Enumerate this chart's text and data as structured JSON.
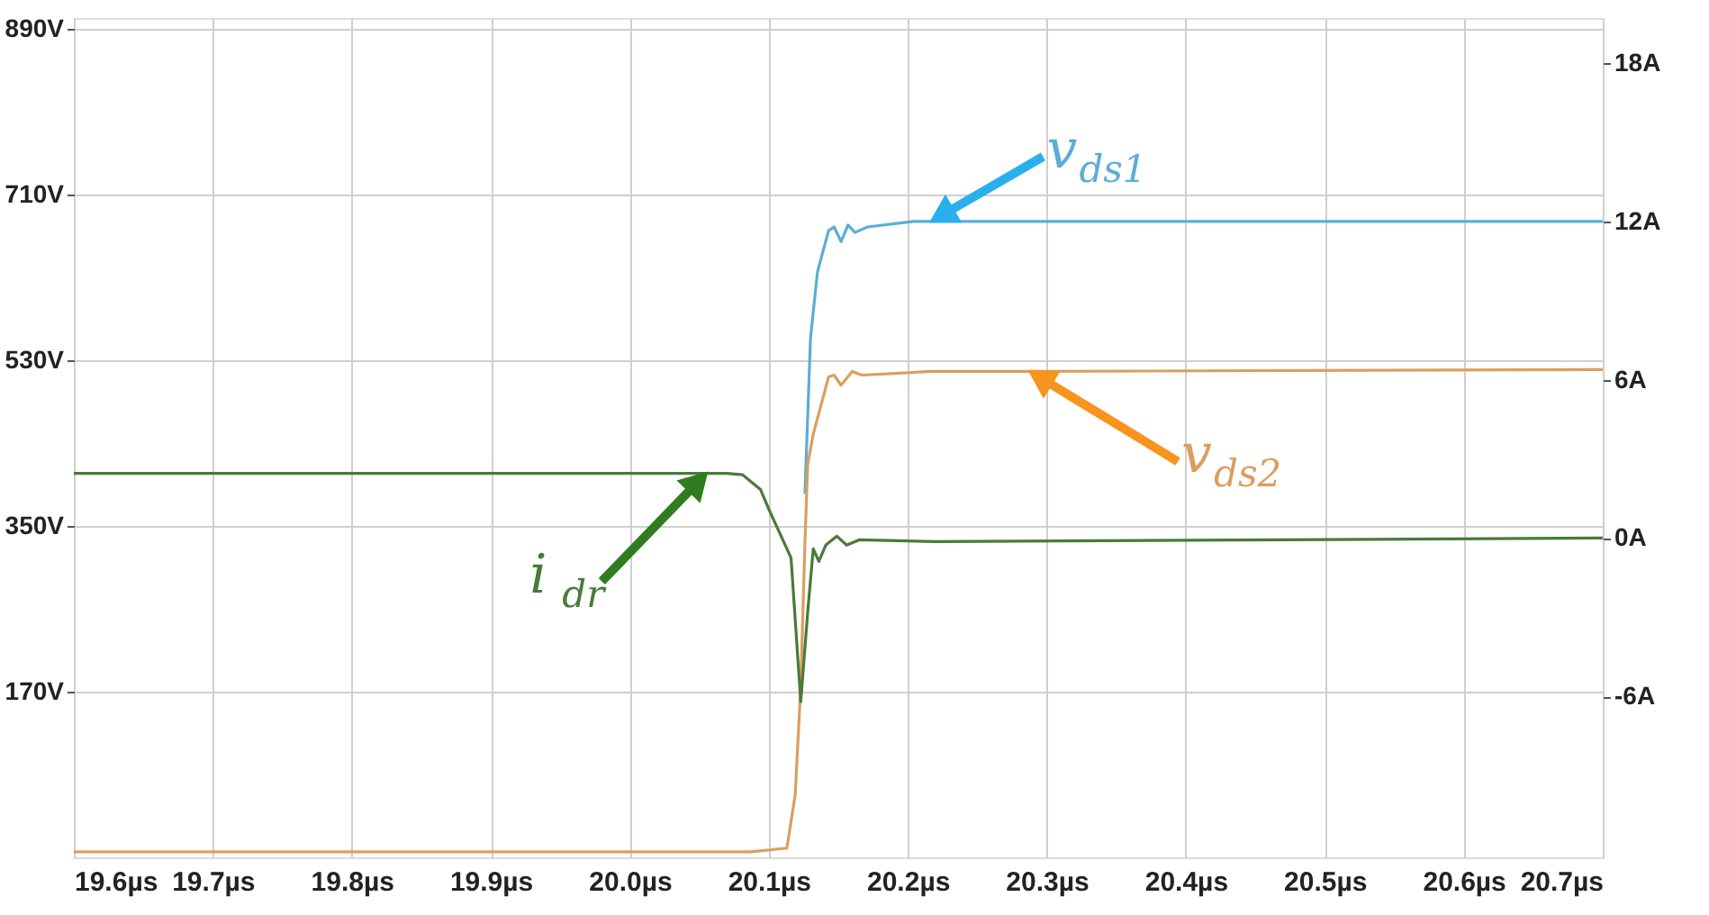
{
  "chart_data": {
    "type": "line",
    "xlim": [
      19.6,
      20.7
    ],
    "xticks": [
      {
        "value": 19.6,
        "label": "19.6µs"
      },
      {
        "value": 19.7,
        "label": "19.7µs"
      },
      {
        "value": 19.8,
        "label": "19.8µs"
      },
      {
        "value": 19.9,
        "label": "19.9µs"
      },
      {
        "value": 20.0,
        "label": "20.0µs"
      },
      {
        "value": 20.1,
        "label": "20.1µs"
      },
      {
        "value": 20.2,
        "label": "20.2µs"
      },
      {
        "value": 20.3,
        "label": "20.3µs"
      },
      {
        "value": 20.4,
        "label": "20.4µs"
      },
      {
        "value": 20.5,
        "label": "20.5µs"
      },
      {
        "value": 20.6,
        "label": "20.6µs"
      },
      {
        "value": 20.7,
        "label": "20.7µs"
      }
    ],
    "ylim": [
      -10,
      902
    ],
    "yticks": [
      {
        "value": 170,
        "label": "170V"
      },
      {
        "value": 350,
        "label": "350V"
      },
      {
        "value": 530,
        "label": "530V"
      },
      {
        "value": 710,
        "label": "710V"
      },
      {
        "value": 890,
        "label": "890V"
      }
    ],
    "y2lim": [
      -12.1,
      19.7
    ],
    "y2ticks": [
      {
        "value": -6,
        "label": "-6A"
      },
      {
        "value": 0,
        "label": "0A"
      },
      {
        "value": 6,
        "label": "6A"
      },
      {
        "value": 12,
        "label": "12A"
      },
      {
        "value": 18,
        "label": "18A"
      }
    ],
    "grid": true,
    "series": [
      {
        "name": "v$_{ds1}$",
        "color": "#5aaed6",
        "x": [
          20.126,
          20.13,
          20.135,
          20.143,
          20.147,
          20.152,
          20.157,
          20.162,
          20.171,
          20.204,
          20.217,
          20.7
        ],
        "values": [
          385,
          554,
          626,
          671,
          675,
          659,
          677,
          669,
          675,
          681,
          681,
          681
        ]
      },
      {
        "name": "v$_{ds2}$",
        "color": "#dc9e5e",
        "x": [
          19.6,
          20.087,
          20.113,
          20.119,
          20.123,
          20.126,
          20.128,
          20.132,
          20.143,
          20.147,
          20.152,
          20.16,
          20.167,
          20.217,
          20.288,
          20.7
        ],
        "values": [
          -4,
          -4,
          0,
          58,
          176,
          332,
          417,
          450,
          512,
          514,
          503,
          518,
          514,
          518,
          518,
          520
        ]
      },
      {
        "name": "i$_{dr}$",
        "color": "#4a7a3a",
        "axis": "y2",
        "x": [
          19.6,
          20.055,
          20.07,
          20.081,
          20.094,
          20.1,
          20.116,
          20.123,
          20.128,
          20.132,
          20.136,
          20.141,
          20.149,
          20.156,
          20.165,
          20.22,
          20.7
        ],
        "values": [
          2.45,
          2.45,
          2.45,
          2.4,
          1.84,
          1.09,
          -0.75,
          -6.2,
          -2.8,
          -0.41,
          -0.89,
          -0.27,
          0.07,
          -0.27,
          -0.07,
          -0.14,
          0
        ]
      }
    ]
  }
}
